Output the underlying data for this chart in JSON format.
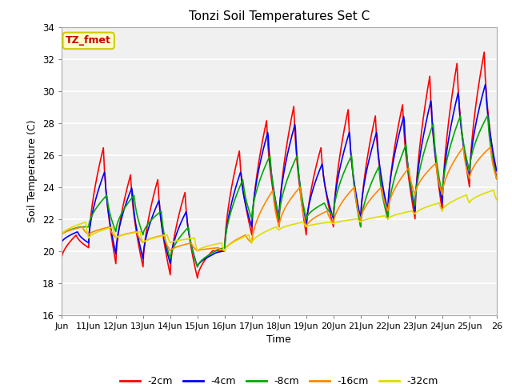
{
  "title": "Tonzi Soil Temperatures Set C",
  "xlabel": "Time",
  "ylabel": "Soil Temperature (C)",
  "ylim": [
    16,
    34
  ],
  "xlim": [
    0,
    16
  ],
  "annotation_text": "TZ_fmet",
  "annotation_bg": "#ffffcc",
  "annotation_border": "#cccc00",
  "annotation_text_color": "#cc0000",
  "plot_bg": "#f0f0f0",
  "series": [
    {
      "label": "-2cm",
      "color": "#ff0000",
      "lw": 1.2,
      "peaks": [
        21.0,
        26.5,
        24.8,
        24.5,
        23.7,
        20.0,
        26.3,
        28.2,
        29.1,
        26.5,
        28.9,
        28.5,
        29.2,
        31.0,
        31.8,
        32.5,
        32.0
      ],
      "troughs": [
        19.5,
        20.2,
        19.2,
        19.0,
        18.5,
        18.3,
        20.0,
        21.0,
        21.5,
        21.0,
        21.5,
        21.5,
        22.0,
        22.0,
        22.5,
        24.0,
        24.5
      ],
      "peak_phase": 0.55,
      "lag": 0.0
    },
    {
      "label": "-4cm",
      "color": "#0000ff",
      "lw": 1.2,
      "peaks": [
        21.2,
        25.0,
        24.0,
        23.2,
        22.5,
        19.8,
        25.0,
        27.5,
        28.0,
        25.5,
        27.5,
        27.5,
        28.5,
        29.5,
        30.0,
        30.5,
        30.0
      ],
      "troughs": [
        20.5,
        20.5,
        19.8,
        19.5,
        19.2,
        19.0,
        20.0,
        21.5,
        22.0,
        21.5,
        22.0,
        22.0,
        22.5,
        22.5,
        23.0,
        24.5,
        25.0
      ],
      "peak_phase": 0.6,
      "lag": 0.05
    },
    {
      "label": "-8cm",
      "color": "#00aa00",
      "lw": 1.2,
      "peaks": [
        21.5,
        23.5,
        23.5,
        22.5,
        21.5,
        20.0,
        24.5,
        26.0,
        26.0,
        23.0,
        26.0,
        25.3,
        26.7,
        28.0,
        28.5,
        28.5,
        27.0
      ],
      "troughs": [
        21.0,
        21.5,
        21.2,
        21.0,
        19.5,
        19.0,
        20.2,
        22.0,
        22.0,
        22.0,
        22.2,
        21.5,
        22.0,
        22.8,
        23.5,
        25.0,
        24.5
      ],
      "peak_phase": 0.68,
      "lag": 0.1
    },
    {
      "label": "-16cm",
      "color": "#ff8800",
      "lw": 1.2,
      "peaks": [
        21.5,
        21.5,
        21.2,
        21.0,
        20.5,
        20.2,
        21.0,
        23.8,
        24.0,
        22.5,
        24.0,
        24.0,
        25.2,
        25.5,
        26.5,
        26.5,
        26.5
      ],
      "troughs": [
        21.0,
        21.0,
        20.8,
        20.5,
        20.0,
        20.0,
        20.0,
        20.5,
        21.5,
        21.5,
        21.7,
        21.9,
        22.5,
        23.5,
        23.5,
        24.5,
        24.5
      ],
      "peak_phase": 0.78,
      "lag": 0.18
    },
    {
      "label": "-32cm",
      "color": "#dddd00",
      "lw": 1.2,
      "peaks": [
        21.8,
        21.5,
        21.2,
        21.0,
        20.8,
        20.5,
        21.0,
        21.5,
        21.8,
        21.8,
        22.0,
        22.2,
        22.5,
        23.0,
        23.5,
        23.8,
        24.0
      ],
      "troughs": [
        21.0,
        20.8,
        20.8,
        20.5,
        20.5,
        20.0,
        20.0,
        20.5,
        21.3,
        21.5,
        21.7,
        21.8,
        22.0,
        22.3,
        22.5,
        23.0,
        23.2
      ],
      "peak_phase": 0.9,
      "lag": 0.3
    }
  ],
  "xtick_labels": [
    "Jun",
    "11Jun",
    "12Jun",
    "13Jun",
    "14Jun",
    "15Jun",
    "16Jun",
    "17Jun",
    "18Jun",
    "19Jun",
    "20Jun",
    "21Jun",
    "22Jun",
    "23Jun",
    "24Jun",
    "25Jun",
    "26"
  ],
  "xtick_positions": [
    0,
    1,
    2,
    3,
    4,
    5,
    6,
    7,
    8,
    9,
    10,
    11,
    12,
    13,
    14,
    15,
    16
  ],
  "yticks": [
    16,
    18,
    20,
    22,
    24,
    26,
    28,
    30,
    32,
    34
  ]
}
